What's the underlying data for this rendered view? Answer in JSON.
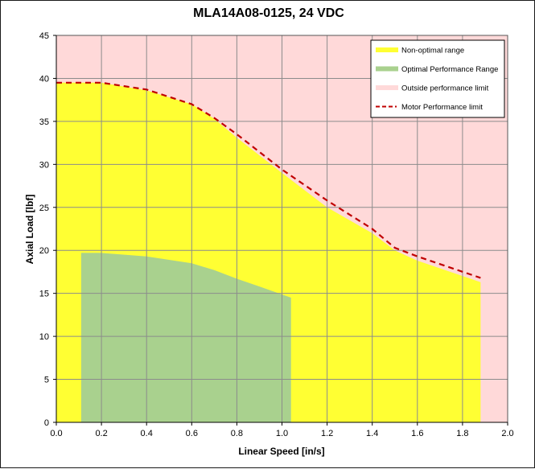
{
  "chart_data": {
    "type": "area",
    "title": "MLA14A08-0125, 24 VDC",
    "xlabel": "Linear Speed [in/s]",
    "ylabel": "Axial Load [lbf]",
    "xlim": [
      0,
      2.0
    ],
    "ylim": [
      0,
      45
    ],
    "x_ticks": [
      "0.0",
      "0.2",
      "0.4",
      "0.6",
      "0.8",
      "1.0",
      "1.2",
      "1.4",
      "1.6",
      "1.8",
      "2.0"
    ],
    "y_ticks": [
      "0",
      "5",
      "10",
      "15",
      "20",
      "25",
      "30",
      "35",
      "40",
      "45"
    ],
    "grid": true,
    "legend_position": "top-right",
    "series": [
      {
        "name": "Non-optimal range",
        "kind": "area",
        "color": "#ffff33",
        "points": [
          [
            0.0,
            39.5
          ],
          [
            0.2,
            39.5
          ],
          [
            0.4,
            38.6
          ],
          [
            0.6,
            37.0
          ],
          [
            0.7,
            35.3
          ],
          [
            0.8,
            33.1
          ],
          [
            1.0,
            29.0
          ],
          [
            1.2,
            25.0
          ],
          [
            1.4,
            22.0
          ],
          [
            1.5,
            20.0
          ],
          [
            1.6,
            18.8
          ],
          [
            1.88,
            16.3
          ]
        ]
      },
      {
        "name": "Optimal Performance Range",
        "kind": "area",
        "color": "#a9d18e",
        "points": [
          [
            0.11,
            19.7
          ],
          [
            0.2,
            19.7
          ],
          [
            0.4,
            19.3
          ],
          [
            0.6,
            18.5
          ],
          [
            0.7,
            17.7
          ],
          [
            0.8,
            16.7
          ],
          [
            0.9,
            15.8
          ],
          [
            1.04,
            14.5
          ]
        ]
      },
      {
        "name": "Outside performance limit",
        "kind": "background",
        "color": "#ffd9d9"
      },
      {
        "name": "Motor Performance limit",
        "kind": "dashed-line",
        "color": "#c00000",
        "points": [
          [
            0.0,
            39.5
          ],
          [
            0.2,
            39.5
          ],
          [
            0.4,
            38.7
          ],
          [
            0.6,
            37.0
          ],
          [
            0.7,
            35.4
          ],
          [
            0.8,
            33.5
          ],
          [
            1.0,
            29.4
          ],
          [
            1.2,
            25.8
          ],
          [
            1.4,
            22.5
          ],
          [
            1.5,
            20.3
          ],
          [
            1.6,
            19.3
          ],
          [
            1.88,
            16.8
          ]
        ]
      }
    ]
  }
}
